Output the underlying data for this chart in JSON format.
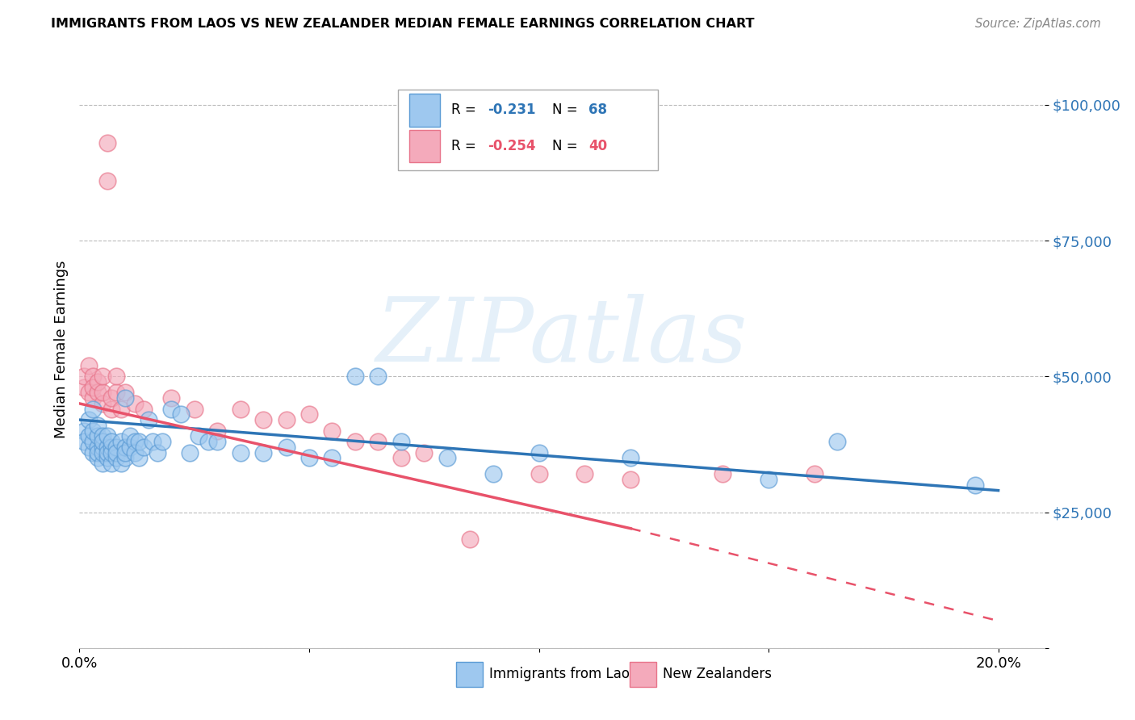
{
  "title": "IMMIGRANTS FROM LAOS VS NEW ZEALANDER MEDIAN FEMALE EARNINGS CORRELATION CHART",
  "source": "Source: ZipAtlas.com",
  "ylabel": "Median Female Earnings",
  "xlim": [
    0.0,
    0.21
  ],
  "ylim": [
    0,
    110000
  ],
  "yticks": [
    0,
    25000,
    50000,
    75000,
    100000
  ],
  "ytick_labels": [
    "",
    "$25,000",
    "$50,000",
    "$75,000",
    "$100,000"
  ],
  "xticks": [
    0.0,
    0.05,
    0.1,
    0.15,
    0.2
  ],
  "xtick_labels": [
    "0.0%",
    "",
    "",
    "",
    "20.0%"
  ],
  "blue_color": "#9EC8EF",
  "pink_color": "#F4AABB",
  "blue_edge_color": "#5B9BD5",
  "pink_edge_color": "#E8748A",
  "blue_line_color": "#2E75B6",
  "pink_line_color": "#E8526A",
  "r_blue": "-0.231",
  "n_blue": "68",
  "r_pink": "-0.254",
  "n_pink": "40",
  "blue_label": "Immigrants from Laos",
  "pink_label": "New Zealanders",
  "watermark": "ZIPatlas",
  "blue_line_x0": 0.0,
  "blue_line_y0": 42000,
  "blue_line_x1": 0.2,
  "blue_line_y1": 29000,
  "pink_line_x0": 0.0,
  "pink_line_y0": 45000,
  "pink_line_x1_solid": 0.12,
  "pink_line_y1_solid": 22000,
  "pink_line_x1_dash": 0.2,
  "pink_line_y1_dash": 5000,
  "blue_scatter_x": [
    0.001,
    0.001,
    0.002,
    0.002,
    0.002,
    0.003,
    0.003,
    0.003,
    0.003,
    0.004,
    0.004,
    0.004,
    0.004,
    0.004,
    0.005,
    0.005,
    0.005,
    0.005,
    0.005,
    0.006,
    0.006,
    0.006,
    0.006,
    0.007,
    0.007,
    0.007,
    0.007,
    0.008,
    0.008,
    0.008,
    0.009,
    0.009,
    0.01,
    0.01,
    0.01,
    0.01,
    0.011,
    0.011,
    0.012,
    0.012,
    0.013,
    0.013,
    0.014,
    0.015,
    0.016,
    0.017,
    0.018,
    0.02,
    0.022,
    0.024,
    0.026,
    0.028,
    0.03,
    0.035,
    0.04,
    0.045,
    0.05,
    0.055,
    0.06,
    0.065,
    0.07,
    0.08,
    0.09,
    0.1,
    0.12,
    0.15,
    0.165,
    0.195
  ],
  "blue_scatter_y": [
    40000,
    38000,
    37000,
    42000,
    39000,
    36000,
    38000,
    40000,
    44000,
    35000,
    37000,
    39000,
    41000,
    36000,
    34000,
    37000,
    39000,
    36000,
    38000,
    35000,
    37000,
    39000,
    36000,
    34000,
    37000,
    36000,
    38000,
    35000,
    37000,
    36000,
    34000,
    38000,
    35000,
    37000,
    36000,
    46000,
    37000,
    39000,
    38000,
    36000,
    35000,
    38000,
    37000,
    42000,
    38000,
    36000,
    38000,
    44000,
    43000,
    36000,
    39000,
    38000,
    38000,
    36000,
    36000,
    37000,
    35000,
    35000,
    50000,
    50000,
    38000,
    35000,
    32000,
    36000,
    35000,
    31000,
    38000,
    30000
  ],
  "pink_scatter_x": [
    0.001,
    0.001,
    0.002,
    0.002,
    0.003,
    0.003,
    0.003,
    0.004,
    0.004,
    0.005,
    0.005,
    0.005,
    0.006,
    0.006,
    0.007,
    0.007,
    0.008,
    0.008,
    0.009,
    0.01,
    0.012,
    0.014,
    0.02,
    0.025,
    0.03,
    0.035,
    0.04,
    0.045,
    0.05,
    0.055,
    0.06,
    0.065,
    0.07,
    0.075,
    0.085,
    0.1,
    0.11,
    0.12,
    0.14,
    0.16
  ],
  "pink_scatter_y": [
    48000,
    50000,
    47000,
    52000,
    46000,
    50000,
    48000,
    47000,
    49000,
    45000,
    47000,
    50000,
    86000,
    93000,
    44000,
    46000,
    47000,
    50000,
    44000,
    47000,
    45000,
    44000,
    46000,
    44000,
    40000,
    44000,
    42000,
    42000,
    43000,
    40000,
    38000,
    38000,
    35000,
    36000,
    20000,
    32000,
    32000,
    31000,
    32000,
    32000
  ],
  "bg_color": "#FFFFFF",
  "grid_color": "#BBBBBB"
}
